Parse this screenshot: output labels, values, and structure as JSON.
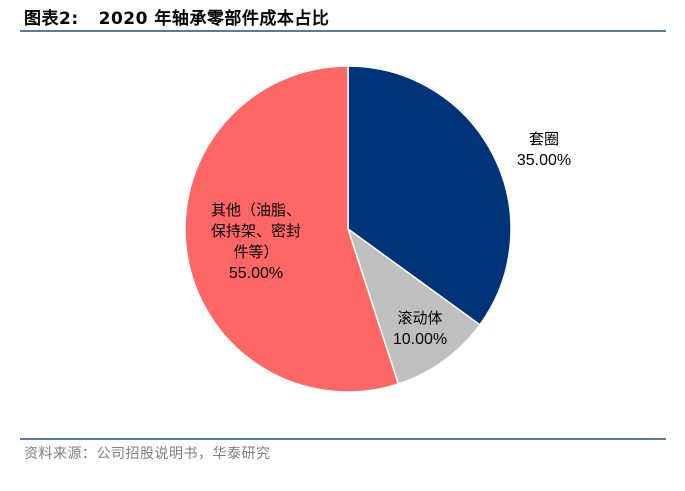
{
  "figure": {
    "label": "图表2:",
    "title": "2020 年轴承零部件成本占比",
    "source": "资料来源：公司招股说明书，华泰研究"
  },
  "chart_data": {
    "type": "pie",
    "title": "2020 年轴承零部件成本占比",
    "start_angle_deg": 0,
    "direction": "clockwise",
    "slices": [
      {
        "name": "套圈",
        "label_lines": [
          "套圈"
        ],
        "value": 35.0,
        "value_label": "35.00%",
        "color": "#003478"
      },
      {
        "name": "滚动体",
        "label_lines": [
          "滚动体"
        ],
        "value": 10.0,
        "value_label": "10.00%",
        "color": "#bfbfbf"
      },
      {
        "name": "其他（油脂、保持架、密封件等）",
        "label_lines": [
          "其他（油脂、",
          "保持架、密封",
          "件等）"
        ],
        "value": 55.0,
        "value_label": "55.00%",
        "color": "#ff6666"
      }
    ]
  }
}
